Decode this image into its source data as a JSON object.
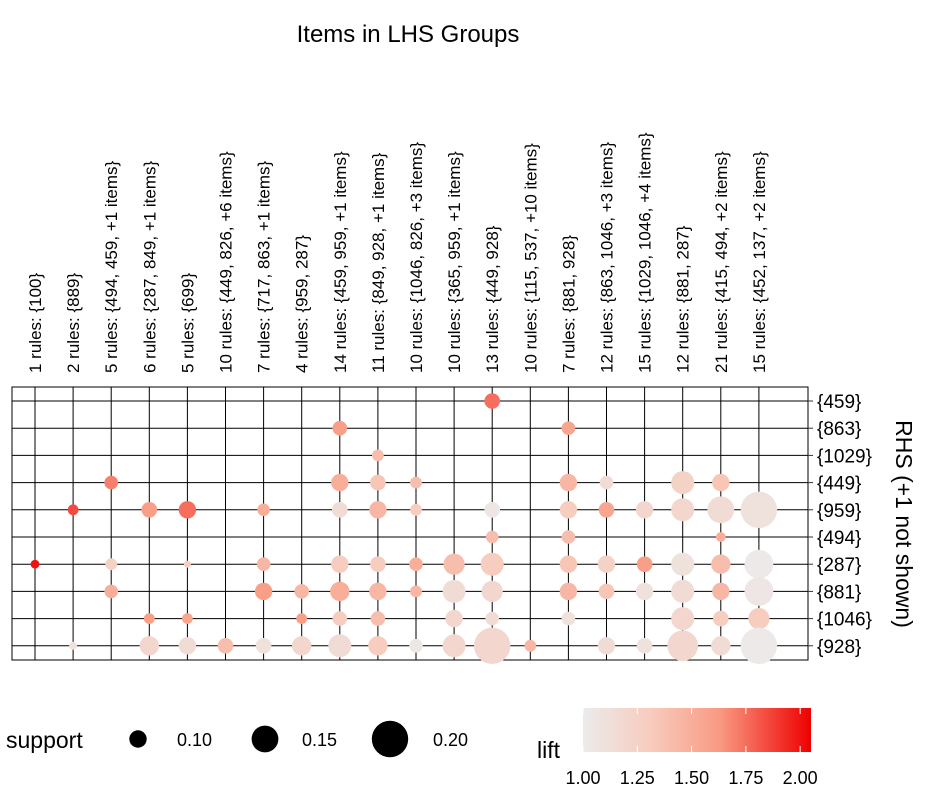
{
  "chart_data": {
    "type": "scatter",
    "title": "Items in LHS Groups",
    "ylabel": "RHS (+1 not shown)",
    "grid": true,
    "columns": [
      "1 rules: {100}",
      "2 rules: {889}",
      "5 rules: {494, 459, +1 items}",
      "6 rules: {287, 849, +1 items}",
      "5 rules: {699}",
      "10 rules: {449, 826, +6 items}",
      "7 rules: {717, 863, +1 items}",
      "4 rules: {959, 287}",
      "14 rules: {459, 959, +1 items}",
      "11 rules: {849, 928, +1 items}",
      "10 rules: {1046, 826, +3 items}",
      "10 rules: {365, 959, +1 items}",
      "13 rules: {449, 928}",
      "10 rules: {115, 537, +10 items}",
      "7 rules: {881, 928}",
      "12 rules: {863, 1046, +3 items}",
      "15 rules: {1029, 1046, +4 items}",
      "12 rules: {881, 287}",
      "21 rules: {415, 494, +2 items}",
      "15 rules: {452, 137, +2 items}"
    ],
    "rows": [
      "{459}",
      "{863}",
      "{1029}",
      "{449}",
      "{959}",
      "{494}",
      "{287}",
      "{881}",
      "{1046}",
      "{928}"
    ],
    "points": [
      {
        "col": 0,
        "row": 6,
        "support": 0.055,
        "lift": 2.0
      },
      {
        "col": 1,
        "row": 4,
        "support": 0.065,
        "lift": 1.85
      },
      {
        "col": 1,
        "row": 9,
        "support": 0.05,
        "lift": 1.1
      },
      {
        "col": 2,
        "row": 3,
        "support": 0.08,
        "lift": 1.7
      },
      {
        "col": 2,
        "row": 6,
        "support": 0.07,
        "lift": 1.25
      },
      {
        "col": 2,
        "row": 7,
        "support": 0.08,
        "lift": 1.5
      },
      {
        "col": 3,
        "row": 4,
        "support": 0.09,
        "lift": 1.6
      },
      {
        "col": 3,
        "row": 8,
        "support": 0.065,
        "lift": 1.6
      },
      {
        "col": 3,
        "row": 9,
        "support": 0.11,
        "lift": 1.2
      },
      {
        "col": 4,
        "row": 4,
        "support": 0.1,
        "lift": 1.75
      },
      {
        "col": 4,
        "row": 6,
        "support": 0.045,
        "lift": 1.3
      },
      {
        "col": 4,
        "row": 8,
        "support": 0.065,
        "lift": 1.55
      },
      {
        "col": 4,
        "row": 9,
        "support": 0.1,
        "lift": 1.15
      },
      {
        "col": 5,
        "row": 9,
        "support": 0.09,
        "lift": 1.4
      },
      {
        "col": 6,
        "row": 4,
        "support": 0.075,
        "lift": 1.5
      },
      {
        "col": 6,
        "row": 6,
        "support": 0.08,
        "lift": 1.45
      },
      {
        "col": 6,
        "row": 7,
        "support": 0.1,
        "lift": 1.6
      },
      {
        "col": 6,
        "row": 9,
        "support": 0.09,
        "lift": 1.1
      },
      {
        "col": 7,
        "row": 7,
        "support": 0.085,
        "lift": 1.45
      },
      {
        "col": 7,
        "row": 8,
        "support": 0.065,
        "lift": 1.6
      },
      {
        "col": 7,
        "row": 9,
        "support": 0.11,
        "lift": 1.2
      },
      {
        "col": 8,
        "row": 1,
        "support": 0.085,
        "lift": 1.6
      },
      {
        "col": 8,
        "row": 3,
        "support": 0.1,
        "lift": 1.5
      },
      {
        "col": 8,
        "row": 4,
        "support": 0.09,
        "lift": 1.15
      },
      {
        "col": 8,
        "row": 6,
        "support": 0.1,
        "lift": 1.3
      },
      {
        "col": 8,
        "row": 7,
        "support": 0.11,
        "lift": 1.5
      },
      {
        "col": 8,
        "row": 8,
        "support": 0.085,
        "lift": 1.3
      },
      {
        "col": 8,
        "row": 9,
        "support": 0.13,
        "lift": 1.15
      },
      {
        "col": 9,
        "row": 2,
        "support": 0.07,
        "lift": 1.4
      },
      {
        "col": 9,
        "row": 3,
        "support": 0.09,
        "lift": 1.35
      },
      {
        "col": 9,
        "row": 4,
        "support": 0.1,
        "lift": 1.45
      },
      {
        "col": 9,
        "row": 6,
        "support": 0.09,
        "lift": 1.3
      },
      {
        "col": 9,
        "row": 7,
        "support": 0.1,
        "lift": 1.45
      },
      {
        "col": 9,
        "row": 8,
        "support": 0.085,
        "lift": 1.4
      },
      {
        "col": 9,
        "row": 9,
        "support": 0.11,
        "lift": 1.3
      },
      {
        "col": 10,
        "row": 3,
        "support": 0.07,
        "lift": 1.4
      },
      {
        "col": 10,
        "row": 4,
        "support": 0.07,
        "lift": 1.3
      },
      {
        "col": 10,
        "row": 6,
        "support": 0.08,
        "lift": 1.5
      },
      {
        "col": 10,
        "row": 7,
        "support": 0.07,
        "lift": 1.45
      },
      {
        "col": 10,
        "row": 9,
        "support": 0.08,
        "lift": 1.05
      },
      {
        "col": 11,
        "row": 6,
        "support": 0.12,
        "lift": 1.4
      },
      {
        "col": 11,
        "row": 7,
        "support": 0.13,
        "lift": 1.15
      },
      {
        "col": 11,
        "row": 8,
        "support": 0.1,
        "lift": 1.2
      },
      {
        "col": 11,
        "row": 9,
        "support": 0.13,
        "lift": 1.2
      },
      {
        "col": 12,
        "row": 0,
        "support": 0.09,
        "lift": 1.75
      },
      {
        "col": 12,
        "row": 4,
        "support": 0.09,
        "lift": 1.05
      },
      {
        "col": 12,
        "row": 5,
        "support": 0.075,
        "lift": 1.4
      },
      {
        "col": 12,
        "row": 6,
        "support": 0.13,
        "lift": 1.3
      },
      {
        "col": 12,
        "row": 7,
        "support": 0.12,
        "lift": 1.2
      },
      {
        "col": 12,
        "row": 8,
        "support": 0.08,
        "lift": 1.15
      },
      {
        "col": 12,
        "row": 9,
        "support": 0.2,
        "lift": 1.2
      },
      {
        "col": 13,
        "row": 9,
        "support": 0.07,
        "lift": 1.45
      },
      {
        "col": 14,
        "row": 1,
        "support": 0.08,
        "lift": 1.55
      },
      {
        "col": 14,
        "row": 3,
        "support": 0.1,
        "lift": 1.45
      },
      {
        "col": 14,
        "row": 4,
        "support": 0.1,
        "lift": 1.3
      },
      {
        "col": 14,
        "row": 5,
        "support": 0.08,
        "lift": 1.4
      },
      {
        "col": 14,
        "row": 6,
        "support": 0.1,
        "lift": 1.35
      },
      {
        "col": 14,
        "row": 7,
        "support": 0.1,
        "lift": 1.45
      },
      {
        "col": 14,
        "row": 8,
        "support": 0.08,
        "lift": 1.1
      },
      {
        "col": 15,
        "row": 3,
        "support": 0.08,
        "lift": 1.15
      },
      {
        "col": 15,
        "row": 4,
        "support": 0.09,
        "lift": 1.55
      },
      {
        "col": 15,
        "row": 6,
        "support": 0.1,
        "lift": 1.25
      },
      {
        "col": 15,
        "row": 7,
        "support": 0.09,
        "lift": 1.35
      },
      {
        "col": 15,
        "row": 9,
        "support": 0.1,
        "lift": 1.15
      },
      {
        "col": 16,
        "row": 4,
        "support": 0.1,
        "lift": 1.2
      },
      {
        "col": 16,
        "row": 6,
        "support": 0.09,
        "lift": 1.6
      },
      {
        "col": 16,
        "row": 7,
        "support": 0.1,
        "lift": 1.1
      },
      {
        "col": 16,
        "row": 9,
        "support": 0.09,
        "lift": 1.1
      },
      {
        "col": 17,
        "row": 3,
        "support": 0.13,
        "lift": 1.25
      },
      {
        "col": 17,
        "row": 4,
        "support": 0.13,
        "lift": 1.2
      },
      {
        "col": 17,
        "row": 6,
        "support": 0.13,
        "lift": 1.1
      },
      {
        "col": 17,
        "row": 7,
        "support": 0.13,
        "lift": 1.15
      },
      {
        "col": 17,
        "row": 8,
        "support": 0.13,
        "lift": 1.2
      },
      {
        "col": 17,
        "row": 9,
        "support": 0.17,
        "lift": 1.2
      },
      {
        "col": 18,
        "row": 3,
        "support": 0.1,
        "lift": 1.35
      },
      {
        "col": 18,
        "row": 4,
        "support": 0.15,
        "lift": 1.15
      },
      {
        "col": 18,
        "row": 5,
        "support": 0.06,
        "lift": 1.5
      },
      {
        "col": 18,
        "row": 6,
        "support": 0.11,
        "lift": 1.4
      },
      {
        "col": 18,
        "row": 7,
        "support": 0.1,
        "lift": 1.45
      },
      {
        "col": 18,
        "row": 8,
        "support": 0.09,
        "lift": 1.3
      },
      {
        "col": 18,
        "row": 9,
        "support": 0.11,
        "lift": 1.15
      },
      {
        "col": 19,
        "row": 4,
        "support": 0.2,
        "lift": 1.1
      },
      {
        "col": 19,
        "row": 6,
        "support": 0.16,
        "lift": 1.02
      },
      {
        "col": 19,
        "row": 7,
        "support": 0.16,
        "lift": 1.05
      },
      {
        "col": 19,
        "row": 8,
        "support": 0.12,
        "lift": 1.3
      },
      {
        "col": 19,
        "row": 9,
        "support": 0.2,
        "lift": 1.02
      }
    ],
    "legend": {
      "support_title": "support",
      "support_values": [
        0.1,
        0.15,
        0.2
      ],
      "support_labels": [
        "0.10",
        "0.15",
        "0.20"
      ],
      "lift_title": "lift",
      "lift_range": [
        1.0,
        2.05
      ],
      "lift_ticks": [
        "1.00",
        "1.25",
        "1.50",
        "1.75",
        "2.00"
      ],
      "lift_tick_values": [
        1.0,
        1.25,
        1.5,
        1.75,
        2.0
      ],
      "color_low": "#ebebeb",
      "color_high": "#ee0000"
    }
  }
}
